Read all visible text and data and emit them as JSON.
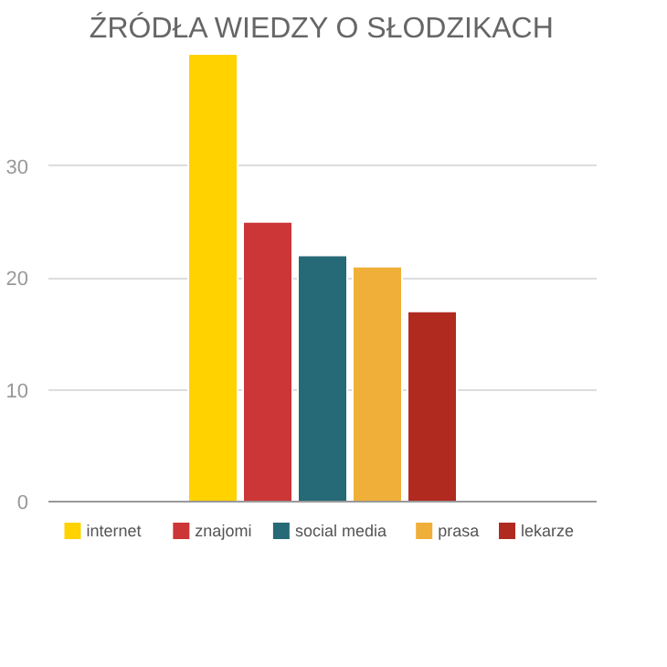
{
  "chart_data": {
    "type": "bar",
    "title": "ŹRÓDŁA WIEDZY O SŁODZIKACH",
    "categories": [
      null
    ],
    "series": [
      {
        "name": "internet",
        "color": "#ffd200",
        "values": [
          40
        ]
      },
      {
        "name": "znajomi",
        "color": "#cc3637",
        "values": [
          25
        ]
      },
      {
        "name": "social media",
        "color": "#266977",
        "values": [
          22
        ]
      },
      {
        "name": "prasa",
        "color": "#f0af38",
        "values": [
          21
        ]
      },
      {
        "name": "lekarze",
        "color": "#b02a20",
        "values": [
          17
        ]
      }
    ],
    "ylim": [
      0,
      40
    ],
    "yticks": [
      0,
      10,
      20,
      30
    ],
    "grid": "y",
    "legend": "bottom",
    "tick_labels": "y"
  }
}
